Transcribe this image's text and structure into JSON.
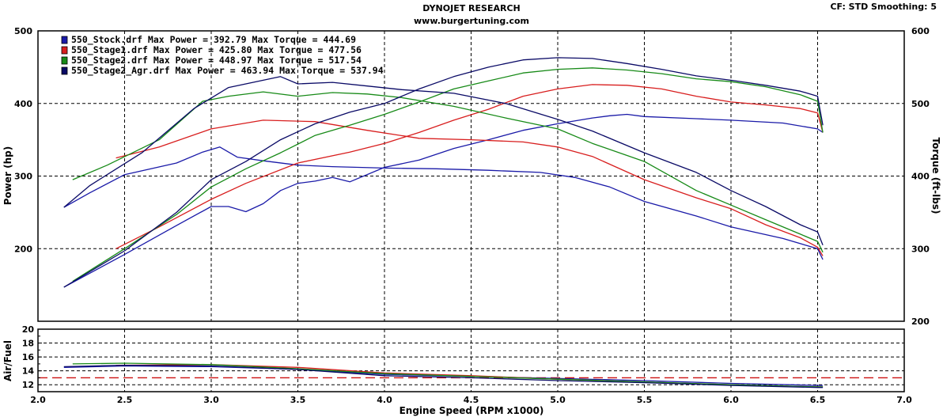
{
  "header": {
    "title": "DYNOJET RESEARCH",
    "website": "www.burgertuning.com",
    "cf_text": "CF: STD  Smoothing: 5"
  },
  "colors": {
    "stock": "#1a1aa8",
    "stage1": "#d81e1e",
    "stage2": "#178a17",
    "stage2_agr": "#0a0a66",
    "afr_target": "#cc1111",
    "grid": "#000000"
  },
  "chart_data": [
    {
      "type": "line",
      "xlabel": "Engine Speed (RPM x1000)",
      "ylabel": "Power (hp)",
      "y2label": "Torque (ft-lbs)",
      "xlim": [
        2.0,
        7.0
      ],
      "ylim": [
        100,
        500
      ],
      "y2lim": [
        200,
        600
      ],
      "x_ticks": [
        "2.0",
        "2.5",
        "3.0",
        "3.5",
        "4.0",
        "4.5",
        "5.0",
        "5.5",
        "6.0",
        "6.5",
        "7.0"
      ],
      "y_ticks": [
        "400",
        "300",
        "200"
      ],
      "y_top_label": "500",
      "y2_ticks": [
        "600",
        "500",
        "400",
        "300",
        "200"
      ],
      "grid": true,
      "legend_position": "top-left",
      "legend": [
        {
          "key": "stock",
          "text": "550_Stock.drf Max Power = 392.79    Max Torque = 444.69"
        },
        {
          "key": "stage1",
          "text": "550_Stage1.drf Max Power = 425.80    Max Torque = 477.56"
        },
        {
          "key": "stage2",
          "text": "550_Stage2.drf Max Power = 448.97    Max Torque = 517.54"
        },
        {
          "key": "stage2_agr",
          "text": "550_Stage2_Agr.drf Max Power = 463.94    Max Torque = 537.94"
        }
      ],
      "series": [
        {
          "key": "stock",
          "kind": "power",
          "axis": "left",
          "x": [
            2.15,
            2.5,
            2.8,
            3.0,
            3.1,
            3.2,
            3.3,
            3.4,
            3.5,
            3.6,
            3.7,
            3.8,
            4.0,
            4.2,
            4.4,
            4.6,
            4.8,
            5.0,
            5.2,
            5.3,
            5.4,
            5.5,
            5.8,
            6.0,
            6.3,
            6.5,
            6.53
          ],
          "y": [
            147,
            192,
            232,
            258,
            258,
            251,
            262,
            280,
            290,
            293,
            298,
            292,
            312,
            322,
            338,
            350,
            363,
            372,
            380,
            383,
            385,
            382,
            379,
            377,
            373,
            365,
            360
          ]
        },
        {
          "key": "stock",
          "kind": "torque",
          "axis": "right",
          "x": [
            2.15,
            2.3,
            2.5,
            2.8,
            2.95,
            3.05,
            3.15,
            3.3,
            3.5,
            3.7,
            4.0,
            4.3,
            4.6,
            4.9,
            5.1,
            5.3,
            5.5,
            5.8,
            6.0,
            6.3,
            6.5,
            6.53
          ],
          "y": [
            357,
            377,
            402,
            418,
            433,
            440,
            426,
            421,
            415,
            413,
            411,
            410,
            408,
            405,
            398,
            385,
            365,
            345,
            330,
            314,
            300,
            285
          ]
        },
        {
          "key": "stage1",
          "kind": "power",
          "axis": "left",
          "x": [
            2.45,
            2.7,
            3.0,
            3.2,
            3.5,
            3.8,
            4.0,
            4.2,
            4.4,
            4.6,
            4.8,
            5.0,
            5.2,
            5.4,
            5.6,
            5.8,
            6.0,
            6.2,
            6.4,
            6.5,
            6.53
          ],
          "y": [
            200,
            230,
            268,
            290,
            318,
            333,
            345,
            360,
            377,
            392,
            410,
            420,
            426,
            425,
            420,
            410,
            402,
            398,
            393,
            387,
            360
          ]
        },
        {
          "key": "stage1",
          "kind": "torque",
          "axis": "right",
          "x": [
            2.45,
            2.7,
            3.0,
            3.3,
            3.6,
            3.9,
            4.2,
            4.5,
            4.8,
            5.0,
            5.2,
            5.5,
            5.8,
            6.0,
            6.2,
            6.4,
            6.5,
            6.53
          ],
          "y": [
            425,
            440,
            465,
            477,
            475,
            463,
            452,
            450,
            447,
            440,
            427,
            395,
            370,
            355,
            333,
            315,
            302,
            290
          ]
        },
        {
          "key": "stage2",
          "kind": "power",
          "axis": "left",
          "x": [
            2.2,
            2.5,
            2.8,
            3.0,
            3.2,
            3.4,
            3.6,
            3.8,
            4.0,
            4.2,
            4.4,
            4.6,
            4.8,
            5.0,
            5.2,
            5.4,
            5.6,
            5.8,
            6.0,
            6.2,
            6.4,
            6.5,
            6.53
          ],
          "y": [
            155,
            200,
            247,
            285,
            310,
            332,
            356,
            370,
            385,
            402,
            420,
            431,
            442,
            447,
            449,
            446,
            441,
            434,
            430,
            423,
            412,
            403,
            360
          ]
        },
        {
          "key": "stage2",
          "kind": "torque",
          "axis": "right",
          "x": [
            2.2,
            2.4,
            2.7,
            2.95,
            3.1,
            3.3,
            3.5,
            3.7,
            3.9,
            4.1,
            4.4,
            4.7,
            5.0,
            5.2,
            5.5,
            5.8,
            6.0,
            6.2,
            6.4,
            6.5,
            6.53
          ],
          "y": [
            395,
            415,
            450,
            503,
            510,
            516,
            510,
            515,
            513,
            508,
            496,
            480,
            465,
            445,
            420,
            380,
            360,
            340,
            320,
            310,
            295
          ]
        },
        {
          "key": "stage2_agr",
          "kind": "power",
          "axis": "left",
          "x": [
            2.15,
            2.5,
            2.8,
            3.0,
            3.2,
            3.4,
            3.6,
            3.8,
            4.0,
            4.2,
            4.4,
            4.6,
            4.8,
            5.0,
            5.2,
            5.4,
            5.6,
            5.8,
            6.0,
            6.2,
            6.4,
            6.5,
            6.53
          ],
          "y": [
            147,
            197,
            250,
            295,
            320,
            350,
            372,
            388,
            400,
            420,
            437,
            450,
            460,
            463,
            462,
            455,
            447,
            438,
            432,
            425,
            417,
            410,
            370
          ]
        },
        {
          "key": "stage2_agr",
          "kind": "torque",
          "axis": "right",
          "x": [
            2.15,
            2.3,
            2.6,
            2.9,
            3.1,
            3.3,
            3.4,
            3.5,
            3.7,
            3.9,
            4.1,
            4.4,
            4.7,
            5.0,
            5.2,
            5.5,
            5.8,
            6.0,
            6.2,
            6.4,
            6.5,
            6.53
          ],
          "y": [
            357,
            387,
            432,
            493,
            522,
            532,
            537,
            527,
            529,
            524,
            519,
            514,
            500,
            478,
            462,
            432,
            405,
            380,
            358,
            333,
            323,
            305
          ]
        }
      ]
    },
    {
      "type": "line",
      "ylabel": "Air/Fuel",
      "xlim": [
        2.0,
        7.0
      ],
      "ylim": [
        11,
        20
      ],
      "y_ticks": [
        "20",
        "18",
        "16",
        "14",
        "12"
      ],
      "y_minor_ticks": [
        "19",
        "17",
        "15",
        "13",
        "11"
      ],
      "grid": true,
      "target_afr": 13,
      "series": [
        {
          "key": "stock",
          "x": [
            2.15,
            2.5,
            3.0,
            3.5,
            4.0,
            4.5,
            5.0,
            5.5,
            6.0,
            6.5,
            6.53
          ],
          "y": [
            14.5,
            14.7,
            14.6,
            14.2,
            13.5,
            13.2,
            12.9,
            12.6,
            12.2,
            11.9,
            11.9
          ]
        },
        {
          "key": "stage1",
          "x": [
            2.45,
            3.0,
            3.5,
            4.0,
            4.5,
            5.0,
            5.5,
            6.0,
            6.5,
            6.53
          ],
          "y": [
            14.8,
            14.9,
            14.5,
            13.7,
            13.3,
            12.8,
            12.4,
            12.0,
            11.7,
            11.7
          ]
        },
        {
          "key": "stage2",
          "x": [
            2.2,
            2.5,
            3.0,
            3.5,
            4.0,
            4.5,
            5.0,
            5.5,
            6.0,
            6.5,
            6.53
          ],
          "y": [
            15.0,
            15.1,
            14.9,
            14.3,
            13.6,
            13.2,
            12.8,
            12.4,
            12.0,
            11.7,
            11.7
          ]
        },
        {
          "key": "stage2_agr",
          "x": [
            2.15,
            2.5,
            3.0,
            3.5,
            4.0,
            4.5,
            5.0,
            5.5,
            6.0,
            6.5,
            6.53
          ],
          "y": [
            14.6,
            14.8,
            14.7,
            14.2,
            13.3,
            13.0,
            12.6,
            12.3,
            11.9,
            11.6,
            11.6
          ]
        }
      ]
    }
  ]
}
